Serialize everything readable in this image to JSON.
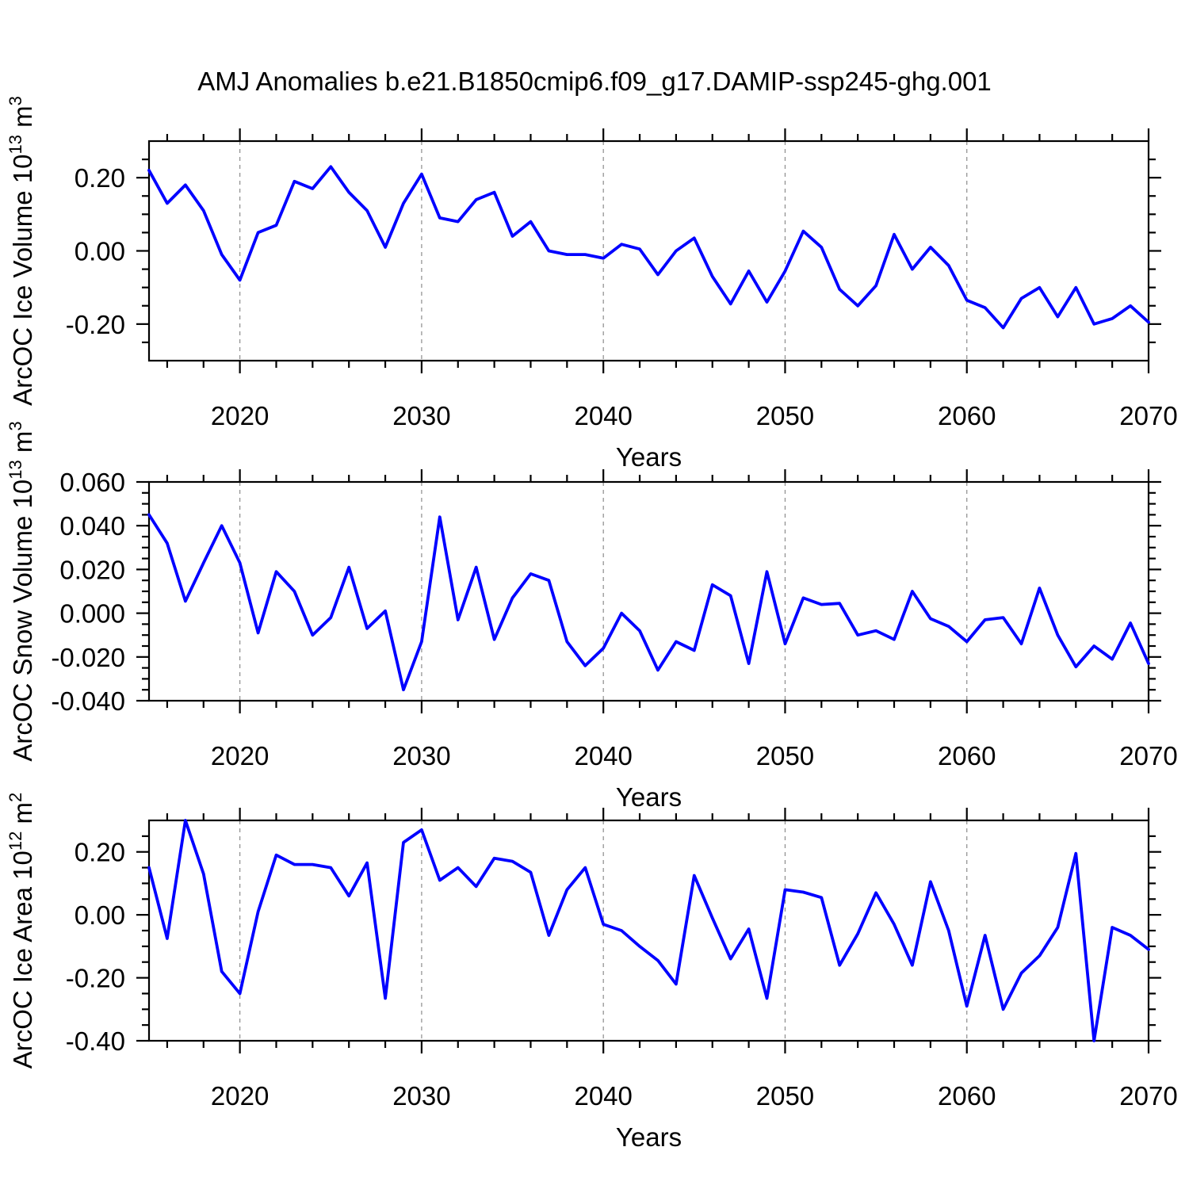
{
  "title": "AMJ Anomalies b.e21.B1850cmip6.f09_g17.DAMIP-ssp245-ghg.001",
  "line_color": "#0000ff",
  "gridline_color": "#8c8c8c",
  "frame_color": "#000000",
  "axes": {
    "x_label": "Years",
    "x_range": [
      2015,
      2070
    ],
    "x_tick_years": [
      2020,
      2030,
      2040,
      2050,
      2060,
      2070
    ],
    "x_tick_labels": [
      "2020",
      "2030",
      "2040",
      "2050",
      "2060",
      "2070"
    ],
    "x_minor_step_years": 2,
    "gridline_years": [
      2020,
      2030,
      2040,
      2050,
      2060
    ]
  },
  "years": [
    2015,
    2016,
    2017,
    2018,
    2019,
    2020,
    2021,
    2022,
    2023,
    2024,
    2025,
    2026,
    2027,
    2028,
    2029,
    2030,
    2031,
    2032,
    2033,
    2034,
    2035,
    2036,
    2037,
    2038,
    2039,
    2040,
    2041,
    2042,
    2043,
    2044,
    2045,
    2046,
    2047,
    2048,
    2049,
    2050,
    2051,
    2052,
    2053,
    2054,
    2055,
    2056,
    2057,
    2058,
    2059,
    2060,
    2061,
    2062,
    2063,
    2064,
    2065,
    2066,
    2067,
    2068,
    2069,
    2070
  ],
  "chart_data": [
    {
      "type": "line",
      "name": "ArcOC Ice Volume",
      "ylabel": "ArcOC Ice Volume 10^13 m^3",
      "ylabel_parts": [
        {
          "text": "ArcOC Ice Volume 10",
          "sup": false
        },
        {
          "text": "13",
          "sup": true
        },
        {
          "text": " m",
          "sup": false
        },
        {
          "text": "3",
          "sup": true
        }
      ],
      "xlabel": "Years",
      "ylim": [
        -0.3,
        0.3
      ],
      "yticks": [
        {
          "v": 0.2,
          "label": "0.20"
        },
        {
          "v": 0.0,
          "label": "0.00"
        },
        {
          "v": -0.2,
          "label": "-0.20"
        }
      ],
      "y_minor_step": 0.05,
      "grid": "vertical-dashed",
      "legend": "none",
      "x": [
        2015,
        2016,
        2017,
        2018,
        2019,
        2020,
        2021,
        2022,
        2023,
        2024,
        2025,
        2026,
        2027,
        2028,
        2029,
        2030,
        2031,
        2032,
        2033,
        2034,
        2035,
        2036,
        2037,
        2038,
        2039,
        2040,
        2041,
        2042,
        2043,
        2044,
        2045,
        2046,
        2047,
        2048,
        2049,
        2050,
        2051,
        2052,
        2053,
        2054,
        2055,
        2056,
        2057,
        2058,
        2059,
        2060,
        2061,
        2062,
        2063,
        2064,
        2065,
        2066,
        2067,
        2068,
        2069,
        2070
      ],
      "values": [
        0.22,
        0.13,
        0.18,
        0.11,
        -0.01,
        -0.08,
        0.05,
        0.07,
        0.19,
        0.17,
        0.23,
        0.16,
        0.11,
        0.01,
        0.13,
        0.21,
        0.09,
        0.08,
        0.14,
        0.16,
        0.04,
        0.08,
        0.0,
        -0.01,
        -0.01,
        -0.02,
        0.018,
        0.005,
        -0.065,
        0.0,
        0.035,
        -0.07,
        -0.145,
        -0.055,
        -0.14,
        -0.055,
        0.054,
        0.01,
        -0.105,
        -0.15,
        -0.095,
        0.045,
        -0.05,
        0.01,
        -0.04,
        -0.135,
        -0.155,
        -0.21,
        -0.13,
        -0.1,
        -0.18,
        -0.1,
        -0.2,
        -0.185,
        -0.15,
        -0.195
      ]
    },
    {
      "type": "line",
      "name": "ArcOC Snow Volume",
      "ylabel": "ArcOC Snow Volume 10^13 m^3",
      "ylabel_parts": [
        {
          "text": "ArcOC Snow Volume 10",
          "sup": false
        },
        {
          "text": "13",
          "sup": true
        },
        {
          "text": " m",
          "sup": false
        },
        {
          "text": "3",
          "sup": true
        }
      ],
      "xlabel": "Years",
      "ylim": [
        -0.04,
        0.06
      ],
      "yticks": [
        {
          "v": 0.06,
          "label": "0.060"
        },
        {
          "v": 0.04,
          "label": "0.040"
        },
        {
          "v": 0.02,
          "label": "0.020"
        },
        {
          "v": 0.0,
          "label": "0.000"
        },
        {
          "v": -0.02,
          "label": "-0.020"
        },
        {
          "v": -0.04,
          "label": "-0.040"
        }
      ],
      "y_minor_step": 0.005,
      "grid": "vertical-dashed",
      "legend": "none",
      "x": [
        2015,
        2016,
        2017,
        2018,
        2019,
        2020,
        2021,
        2022,
        2023,
        2024,
        2025,
        2026,
        2027,
        2028,
        2029,
        2030,
        2031,
        2032,
        2033,
        2034,
        2035,
        2036,
        2037,
        2038,
        2039,
        2040,
        2041,
        2042,
        2043,
        2044,
        2045,
        2046,
        2047,
        2048,
        2049,
        2050,
        2051,
        2052,
        2053,
        2054,
        2055,
        2056,
        2057,
        2058,
        2059,
        2060,
        2061,
        2062,
        2063,
        2064,
        2065,
        2066,
        2067,
        2068,
        2069,
        2070
      ],
      "values": [
        0.045,
        0.032,
        0.0055,
        0.023,
        0.04,
        0.023,
        -0.009,
        0.019,
        0.01,
        -0.01,
        -0.002,
        0.021,
        -0.007,
        0.001,
        -0.035,
        -0.013,
        0.044,
        -0.003,
        0.021,
        -0.012,
        0.007,
        0.018,
        0.015,
        -0.013,
        -0.024,
        -0.016,
        0.0,
        -0.008,
        -0.026,
        -0.013,
        -0.017,
        0.013,
        0.008,
        -0.023,
        0.019,
        -0.014,
        0.007,
        0.004,
        0.0045,
        -0.01,
        -0.008,
        -0.012,
        0.01,
        -0.0025,
        -0.006,
        -0.013,
        -0.003,
        -0.002,
        -0.014,
        0.0115,
        -0.01,
        -0.0245,
        -0.015,
        -0.021,
        -0.0045,
        -0.023
      ]
    },
    {
      "type": "line",
      "name": "ArcOC Ice Area",
      "ylabel": "ArcOC Ice Area 10^12 m^2",
      "ylabel_parts": [
        {
          "text": "ArcOC Ice Area 10",
          "sup": false
        },
        {
          "text": "12",
          "sup": true
        },
        {
          "text": " m",
          "sup": false
        },
        {
          "text": "2",
          "sup": true
        }
      ],
      "xlabel": "Years",
      "ylim": [
        -0.4,
        0.3
      ],
      "yticks": [
        {
          "v": 0.2,
          "label": "0.20"
        },
        {
          "v": 0.0,
          "label": "0.00"
        },
        {
          "v": -0.2,
          "label": "-0.20"
        },
        {
          "v": -0.4,
          "label": "-0.40"
        }
      ],
      "y_minor_step": 0.05,
      "grid": "vertical-dashed",
      "legend": "none",
      "x": [
        2015,
        2016,
        2017,
        2018,
        2019,
        2020,
        2021,
        2022,
        2023,
        2024,
        2025,
        2026,
        2027,
        2028,
        2029,
        2030,
        2031,
        2032,
        2033,
        2034,
        2035,
        2036,
        2037,
        2038,
        2039,
        2040,
        2041,
        2042,
        2043,
        2044,
        2045,
        2046,
        2047,
        2048,
        2049,
        2050,
        2051,
        2052,
        2053,
        2054,
        2055,
        2056,
        2057,
        2058,
        2059,
        2060,
        2061,
        2062,
        2063,
        2064,
        2065,
        2066,
        2067,
        2068,
        2069,
        2070
      ],
      "values": [
        0.15,
        -0.075,
        0.3,
        0.13,
        -0.18,
        -0.25,
        0.01,
        0.19,
        0.16,
        0.16,
        0.15,
        0.06,
        0.165,
        -0.265,
        0.23,
        0.27,
        0.11,
        0.15,
        0.09,
        0.18,
        0.17,
        0.135,
        -0.065,
        0.08,
        0.15,
        -0.03,
        -0.05,
        -0.1,
        -0.145,
        -0.22,
        0.125,
        -0.01,
        -0.14,
        -0.045,
        -0.265,
        0.08,
        0.072,
        0.055,
        -0.16,
        -0.06,
        0.07,
        -0.03,
        -0.16,
        0.105,
        -0.05,
        -0.29,
        -0.065,
        -0.3,
        -0.185,
        -0.13,
        -0.04,
        0.195,
        -0.4,
        -0.04,
        -0.065,
        -0.11
      ]
    }
  ]
}
